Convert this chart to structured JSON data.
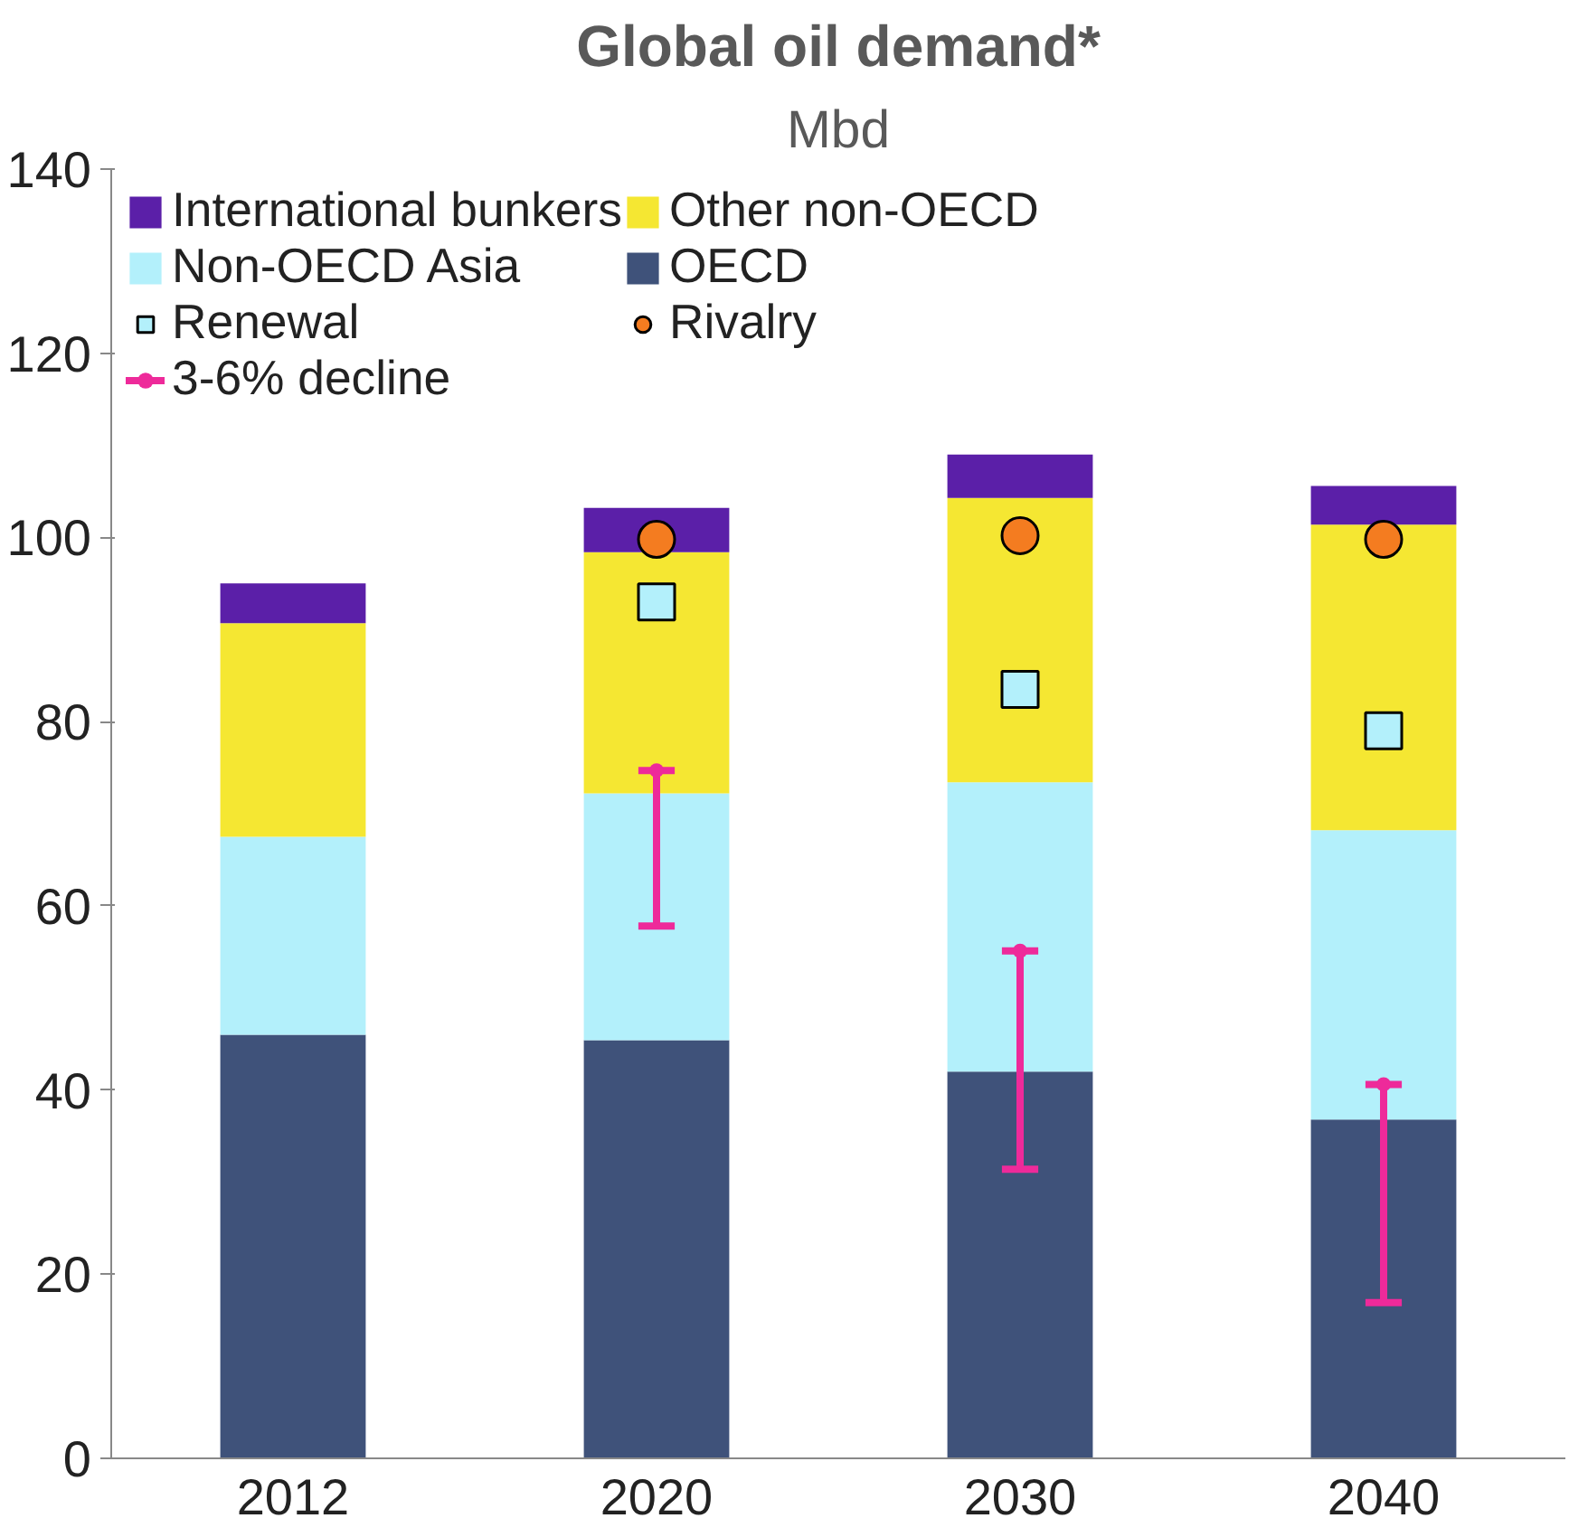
{
  "chart_data": {
    "type": "bar",
    "title": "Global oil demand*",
    "subtitle": "Mbd",
    "stacked": true,
    "categories": [
      "2012",
      "2020",
      "2030",
      "2040"
    ],
    "ylim": [
      0,
      140
    ],
    "yticks": [
      0,
      20,
      40,
      60,
      80,
      100,
      120,
      140
    ],
    "grid": false,
    "legend": "top left",
    "series": [
      {
        "name": "OECD",
        "color": "#3f527a",
        "values": [
          46.0,
          45.4,
          42.0,
          36.8
        ]
      },
      {
        "name": "Non-OECD Asia",
        "color": "#b3f0fb",
        "values": [
          21.5,
          26.8,
          31.4,
          31.4
        ]
      },
      {
        "name": "Other non-OECD",
        "color": "#f5e732",
        "values": [
          23.2,
          26.2,
          30.9,
          33.2
        ]
      },
      {
        "name": "International bunkers",
        "color": "#5b1fa8",
        "values": [
          4.3,
          4.8,
          4.7,
          4.2
        ]
      },
      {
        "name": "Renewal",
        "type": "scatter",
        "marker": "square",
        "color": "#b3f0fb",
        "values": [
          null,
          93,
          83.5,
          79
        ]
      },
      {
        "name": "Rivalry",
        "type": "scatter",
        "marker": "circle",
        "color": "#f47c20",
        "values": [
          null,
          99.8,
          100.2,
          99.8
        ]
      },
      {
        "name": "3-6% decline",
        "type": "scatter",
        "color": "#ee2a9a",
        "values": [
          null,
          74.7,
          55.1,
          40.6
        ],
        "errors": [
          null,
          [
            57.8,
            74.7
          ],
          [
            31.4,
            55.1
          ],
          [
            16.9,
            40.6
          ]
        ]
      }
    ]
  }
}
